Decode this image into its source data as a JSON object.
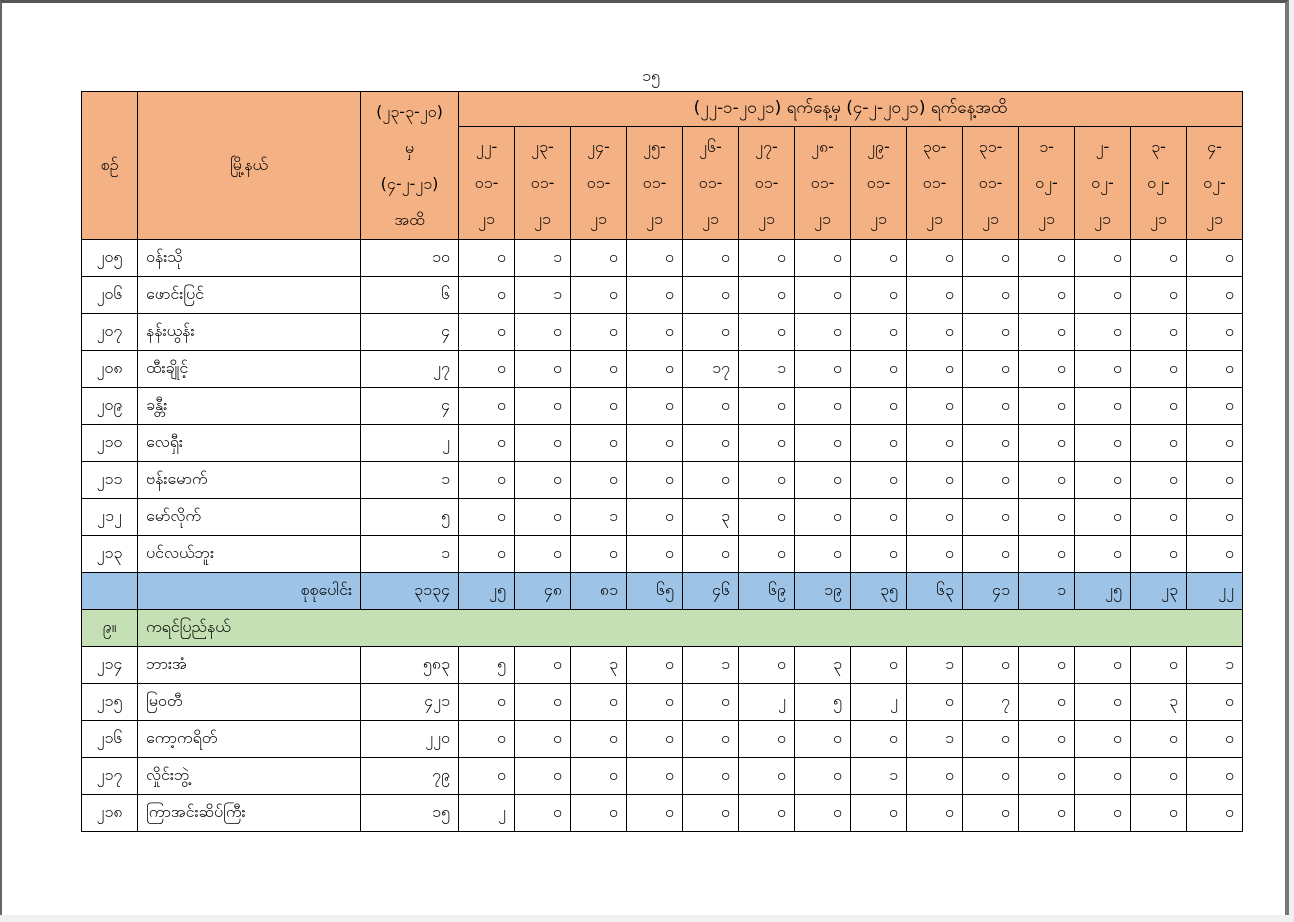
{
  "page_number": "၁၅",
  "header": {
    "col_no": "စဉ်",
    "col_township": "မြို့နယ်",
    "col_cumulative": [
      "(၂၃-၃-၂၀)",
      "မှ",
      "(၄-၂-၂၁)",
      "အထိ"
    ],
    "period": "(၂၂-၁-၂၀၂၁) ရက်နေ့မှ (၄-၂-၂၀၂၁) ရက်နေ့အထိ",
    "dates": [
      [
        "၂၂-",
        "၀၁-",
        "၂၁"
      ],
      [
        "၂၃-",
        "၀၁-",
        "၂၁"
      ],
      [
        "၂၄-",
        "၀၁-",
        "၂၁"
      ],
      [
        "၂၅-",
        "၀၁-",
        "၂၁"
      ],
      [
        "၂၆-",
        "၀၁-",
        "၂၁"
      ],
      [
        "၂၇-",
        "၀၁-",
        "၂၁"
      ],
      [
        "၂၈-",
        "၀၁-",
        "၂၁"
      ],
      [
        "၂၉-",
        "၀၁-",
        "၂၁"
      ],
      [
        "၃၀-",
        "၀၁-",
        "၂၁"
      ],
      [
        "၃၁-",
        "၀၁-",
        "၂၁"
      ],
      [
        "၁-",
        "၀၂-",
        "၂၁"
      ],
      [
        "၂-",
        "၀၂-",
        "၂၁"
      ],
      [
        "၃-",
        "၀၂-",
        "၂၁"
      ],
      [
        "၄-",
        "၀၂-",
        "၂၁"
      ]
    ]
  },
  "rows_a": [
    {
      "no": "၂၀၅",
      "name": "ဝန်းသို",
      "total": "၁၀",
      "daily": [
        "၀",
        "၁",
        "၀",
        "၀",
        "၀",
        "၀",
        "၀",
        "၀",
        "၀",
        "၀",
        "၀",
        "၀",
        "၀",
        "၀"
      ]
    },
    {
      "no": "၂၀၆",
      "name": "ဖောင်းပြင်",
      "total": "၆",
      "daily": [
        "၀",
        "၁",
        "၀",
        "၀",
        "၀",
        "၀",
        "၀",
        "၀",
        "၀",
        "၀",
        "၀",
        "၀",
        "၀",
        "၀"
      ]
    },
    {
      "no": "၂၀၇",
      "name": "နန်းယွန်း",
      "total": "၄",
      "daily": [
        "၀",
        "၀",
        "၀",
        "၀",
        "၀",
        "၀",
        "၀",
        "၀",
        "၀",
        "၀",
        "၀",
        "၀",
        "၀",
        "၀"
      ]
    },
    {
      "no": "၂၀၈",
      "name": "ထီးချိုင့်",
      "total": "၂၇",
      "daily": [
        "၀",
        "၀",
        "၀",
        "၀",
        "၁၇",
        "၁",
        "၀",
        "၀",
        "၀",
        "၀",
        "၀",
        "၀",
        "၀",
        "၀"
      ]
    },
    {
      "no": "၂၀၉",
      "name": "ခန္တီး",
      "total": "၄",
      "daily": [
        "၀",
        "၀",
        "၀",
        "၀",
        "၀",
        "၀",
        "၀",
        "၀",
        "၀",
        "၀",
        "၀",
        "၀",
        "၀",
        "၀"
      ]
    },
    {
      "no": "၂၁၀",
      "name": "လေရှီး",
      "total": "၂",
      "daily": [
        "၀",
        "၀",
        "၀",
        "၀",
        "၀",
        "၀",
        "၀",
        "၀",
        "၀",
        "၀",
        "၀",
        "၀",
        "၀",
        "၀"
      ]
    },
    {
      "no": "၂၁၁",
      "name": "ဗန်းမောက်",
      "total": "၁",
      "daily": [
        "၀",
        "၀",
        "၀",
        "၀",
        "၀",
        "၀",
        "၀",
        "၀",
        "၀",
        "၀",
        "၀",
        "၀",
        "၀",
        "၀"
      ]
    },
    {
      "no": "၂၁၂",
      "name": "မော်လိုက်",
      "total": "၅",
      "daily": [
        "၀",
        "၀",
        "၁",
        "၀",
        "၃",
        "၀",
        "၀",
        "၀",
        "၀",
        "၀",
        "၀",
        "၀",
        "၀",
        "၀"
      ]
    },
    {
      "no": "၂၁၃",
      "name": "ပင်လယ်ဘူး",
      "total": "၁",
      "daily": [
        "၀",
        "၀",
        "၀",
        "၀",
        "၀",
        "၀",
        "၀",
        "၀",
        "၀",
        "၀",
        "၀",
        "၀",
        "၀",
        "၀"
      ]
    }
  ],
  "total_row": {
    "label": "စုစုပေါင်း",
    "total": "၃၁၃၄",
    "daily": [
      "၂၅",
      "၄၈",
      "၈၁",
      "၆၅",
      "၄၆",
      "၆၉",
      "၁၉",
      "၃၅",
      "၆၃",
      "၄၁",
      "၁",
      "၂၅",
      "၂၃",
      "၂၂"
    ]
  },
  "section": {
    "no": "၉။",
    "name": "ကရင်ပြည်နယ်"
  },
  "rows_b": [
    {
      "no": "၂၁၄",
      "name": "ဘားအံ",
      "total": "၅၈၃",
      "daily": [
        "၅",
        "၀",
        "၃",
        "၀",
        "၁",
        "၀",
        "၃",
        "၀",
        "၁",
        "၀",
        "၀",
        "၀",
        "၀",
        "၁"
      ]
    },
    {
      "no": "၂၁၅",
      "name": "မြဝတီ",
      "total": "၄၂၁",
      "daily": [
        "၀",
        "၀",
        "၀",
        "၀",
        "၀",
        "၂",
        "၅",
        "၂",
        "၀",
        "၇",
        "၀",
        "၀",
        "၃",
        "၀"
      ]
    },
    {
      "no": "၂၁၆",
      "name": "ကော့ကရိတ်",
      "total": "၂၂၀",
      "daily": [
        "၀",
        "၀",
        "၀",
        "၀",
        "၀",
        "၀",
        "၀",
        "၀",
        "၁",
        "၀",
        "၀",
        "၀",
        "၀",
        "၀"
      ]
    },
    {
      "no": "၂၁၇",
      "name": "လှိုင်းဘွဲ့",
      "total": "၇၉",
      "daily": [
        "၀",
        "၀",
        "၀",
        "၀",
        "၀",
        "၀",
        "၀",
        "၁",
        "၀",
        "၀",
        "၀",
        "၀",
        "၀",
        "၀"
      ]
    },
    {
      "no": "၂၁၈",
      "name": "ကြာအင်းဆိပ်ကြီး",
      "total": "၁၅",
      "daily": [
        "၂",
        "၀",
        "၀",
        "၀",
        "၀",
        "၀",
        "၀",
        "၀",
        "၀",
        "၀",
        "၀",
        "၀",
        "၀",
        "၀"
      ]
    }
  ],
  "colors": {
    "header": "#F4B183",
    "total": "#9DC3E6",
    "section": "#C5E0B4"
  }
}
